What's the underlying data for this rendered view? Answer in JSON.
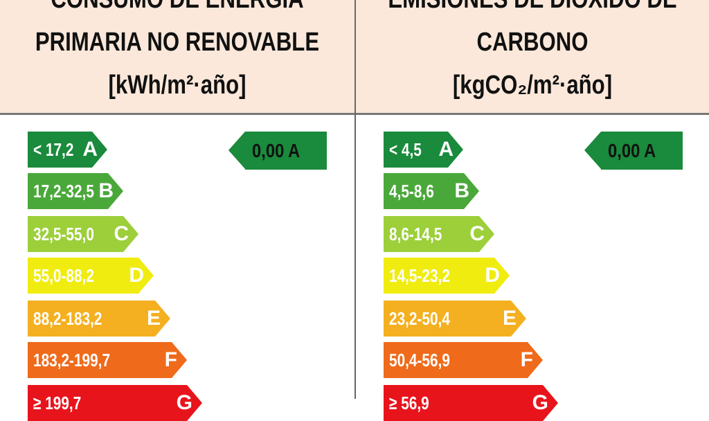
{
  "scale_colors": {
    "A": "#1a8a3c",
    "B": "#4aa83a",
    "C": "#9ccf3a",
    "D": "#f0ec10",
    "E": "#f4b020",
    "F": "#ef6a1a",
    "G": "#e8141c"
  },
  "panels": [
    {
      "title_lines": [
        "CONSUMO DE ENERGÍA",
        "PRIMARIA NO RENOVABLE",
        "[kWh/m²·año]"
      ],
      "rating": "0,00 A",
      "bars": [
        {
          "range": "< 17,2",
          "class": "A"
        },
        {
          "range": "17,2-32,5",
          "class": "B"
        },
        {
          "range": "32,5-55,0",
          "class": "C"
        },
        {
          "range": "55,0-88,2",
          "class": "D"
        },
        {
          "range": "88,2-183,2",
          "class": "E"
        },
        {
          "range": "183,2-199,7",
          "class": "F"
        },
        {
          "range": "≥ 199,7",
          "class": "G"
        }
      ]
    },
    {
      "title_lines": [
        "EMISIONES DE DIÓXIDO DE",
        "CARBONO",
        "[kgCO₂/m²·año]"
      ],
      "rating": "0,00 A",
      "bars": [
        {
          "range": "< 4,5",
          "class": "A"
        },
        {
          "range": "4,5-8,6",
          "class": "B"
        },
        {
          "range": "8,6-14,5",
          "class": "C"
        },
        {
          "range": "14,5-23,2",
          "class": "D"
        },
        {
          "range": "23,2-50,4",
          "class": "E"
        },
        {
          "range": "50,4-56,9",
          "class": "F"
        },
        {
          "range": "≥ 56,9",
          "class": "G"
        }
      ]
    }
  ]
}
